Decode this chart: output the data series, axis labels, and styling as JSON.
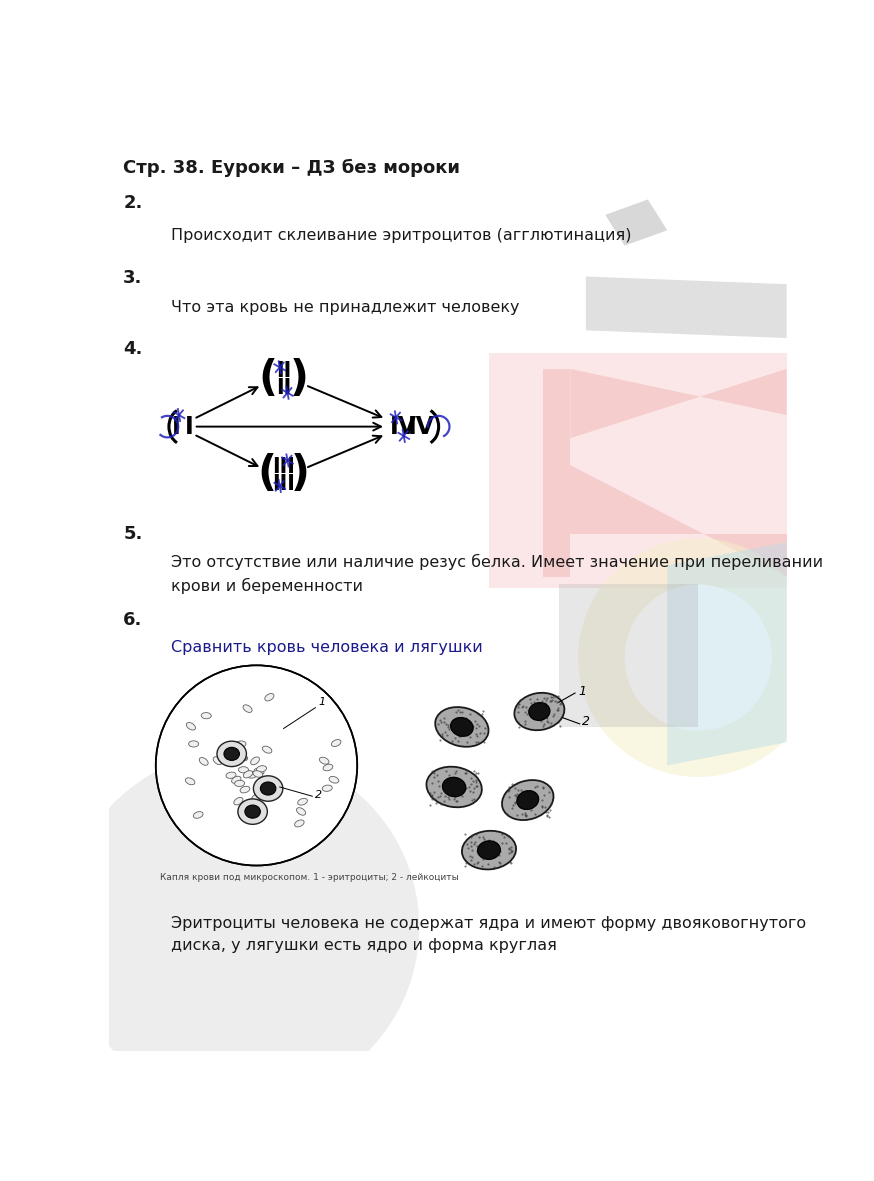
{
  "title": "Стр. 38. Еуроки – ДЗ без мороки",
  "background_color": "#ffffff",
  "section2_label": "2.",
  "section2_text": "Происходит склеивание эритроцитов (агглютинация)",
  "section3_label": "3.",
  "section3_text": "Что эта кровь не принадлежит человеку",
  "section4_label": "4.",
  "section5_label": "5.",
  "section5_text": "Это отсутствие или наличие резус белка. Имеет значение при переливании\nкрови и беременности",
  "section6_label": "6.",
  "section6_text1": "Сравнить кровь человека и лягушки",
  "section6_caption": "Капля крови под микроскопом. 1 - эритроциты; 2 - лейкоциты",
  "section6_text2": "Эритроциты человека не содержат ядра и имеют форму двояковогнутого\nдиска, у лягушки есть ядро и форма круглая",
  "text_color": "#1a1a1a",
  "blue_color": "#2222bb",
  "label_fontsize": 13,
  "body_fontsize": 11.5,
  "title_fontsize": 13
}
